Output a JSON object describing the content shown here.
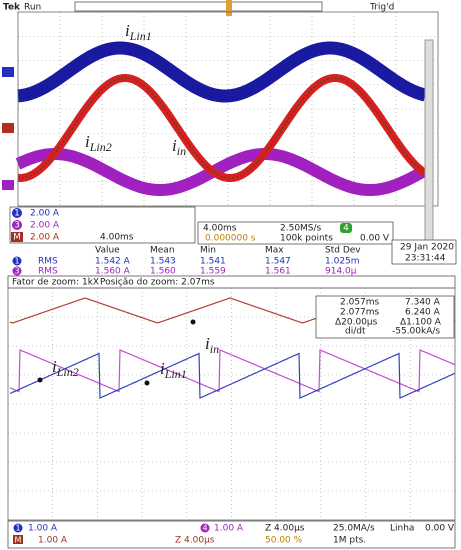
{
  "header": {
    "brand": "Tek",
    "state": "Run",
    "trigger": "Trig'd"
  },
  "upper_labels": {
    "i_lin1": {
      "main": "i",
      "sub": "Lin1"
    },
    "i_lin2": {
      "main": "i",
      "sub": "Lin2"
    },
    "i_in": {
      "main": "i",
      "sub": "in"
    }
  },
  "channel_info": {
    "ch1": {
      "number": "1",
      "scale": "2.00 A"
    },
    "ch3": {
      "number": "3",
      "scale": "2.00 A"
    },
    "math": {
      "number": "M",
      "scale": "2.00 A",
      "time": "4.00ms"
    }
  },
  "acquisition": {
    "timebase": "4.00ms",
    "sample_rate": "2.50MS/s",
    "trigger_channel": "4",
    "trigger_level": "0.00 V",
    "trigger_position": "0.000000 s",
    "record": "100k points"
  },
  "measurements": {
    "headers": [
      "Value",
      "Mean",
      "Min",
      "Max",
      "Std Dev"
    ],
    "rows": [
      [
        "1",
        "RMS",
        "1.542 A",
        "1.543",
        "1.541",
        "1.547",
        "1.025m"
      ],
      [
        "3",
        "RMS",
        "1.560 A",
        "1.560",
        "1.559",
        "1.561",
        "914.0µ"
      ]
    ]
  },
  "datetime": {
    "date": "29 Jan 2020",
    "time": "23:31:44"
  },
  "zoom": {
    "factor": "Fator de zoom: 1kX",
    "position": "Posição do zoom: 2.07ms"
  },
  "cursors": {
    "t1": "2.057ms",
    "v1": "7.340 A",
    "t2": "2.077ms",
    "v2": "6.240 A",
    "dt": "Δ20.00µs",
    "dv": "Δ1.100 A",
    "slope_label": "di/dt",
    "slope": "-55.00kA/s"
  },
  "lower_labels": {
    "i_in": {
      "main": "i",
      "sub": "in"
    },
    "i_lin2": {
      "main": "i",
      "sub": "Lin2"
    },
    "i_lin1": {
      "main": "i",
      "sub": "Lin1"
    }
  },
  "footer": {
    "ch1": {
      "number": "1",
      "scale": "1.00 A"
    },
    "ch4": {
      "number": "4",
      "scale": "1.00 A"
    },
    "math": {
      "number": "M",
      "scale": "1.00 A",
      "zoom": "Z 4.00µs"
    },
    "zoom_time": "Z 4.00µs",
    "zoom_pos": "50.00 %",
    "rate": "25.0MA/s",
    "points": "1M pts.",
    "trigger": "Linha",
    "level": "0.00 V"
  }
}
